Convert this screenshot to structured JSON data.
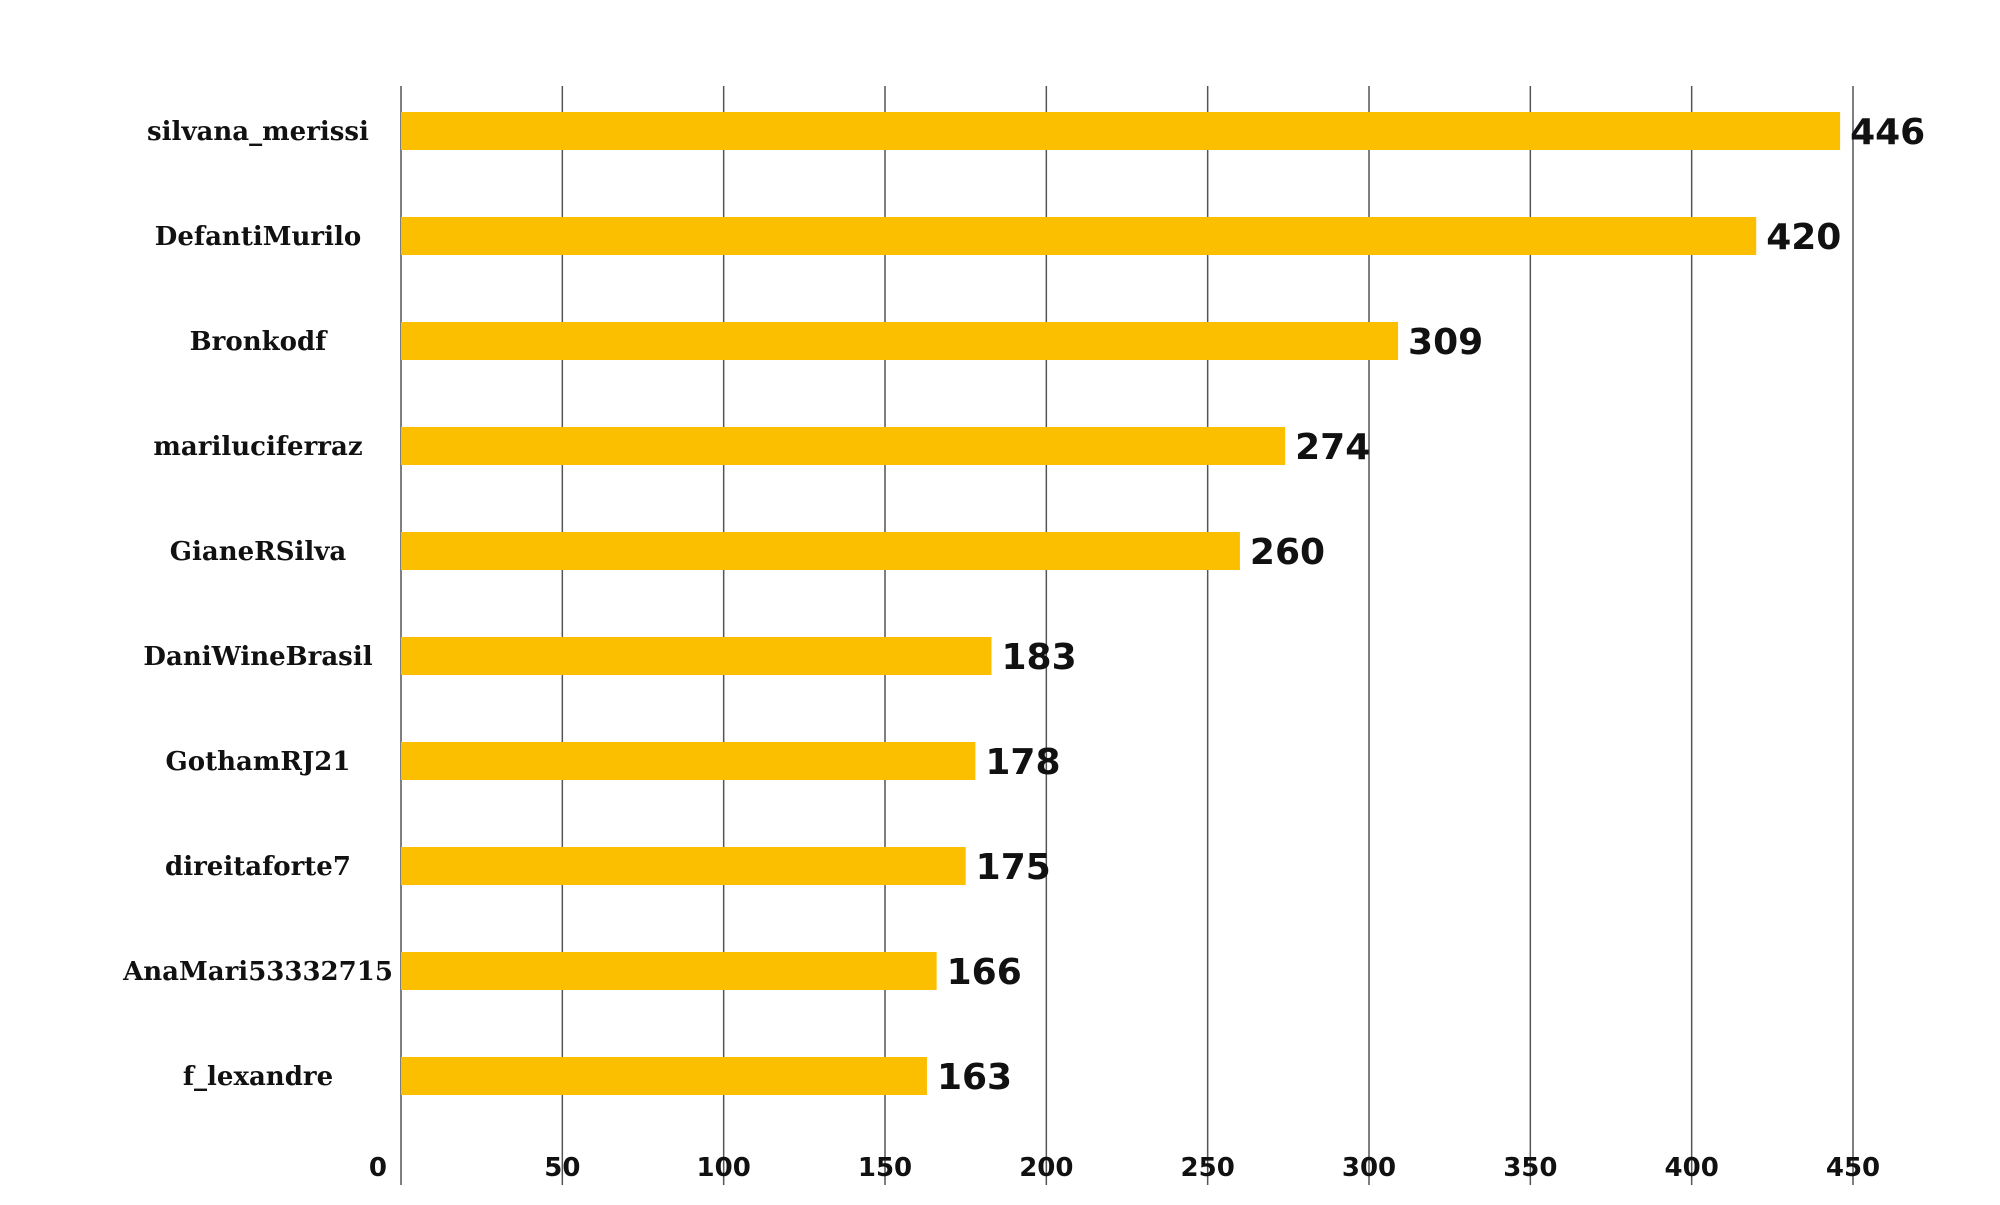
{
  "chart_data": {
    "type": "bar",
    "orientation": "horizontal",
    "title": "",
    "xlabel": "",
    "ylabel": "",
    "categories": [
      "silvana_merissi",
      "DefantiMurilo",
      "Bronkodf",
      "mariluciferraz",
      "GianeRSilva",
      "DaniWineBrasil",
      "GothamRJ21",
      "direitaforte7",
      "AnaMari53332715",
      "f_lexandre"
    ],
    "values": [
      446,
      420,
      309,
      274,
      260,
      183,
      178,
      175,
      166,
      163
    ],
    "xlim": [
      0,
      450
    ],
    "xticks": [
      0,
      50,
      100,
      150,
      200,
      250,
      300,
      350,
      400,
      450
    ],
    "grid": "vertical",
    "legend": "none",
    "bar_color": "#FCBF00",
    "label_color": "#111111",
    "grid_color": "#555555"
  }
}
